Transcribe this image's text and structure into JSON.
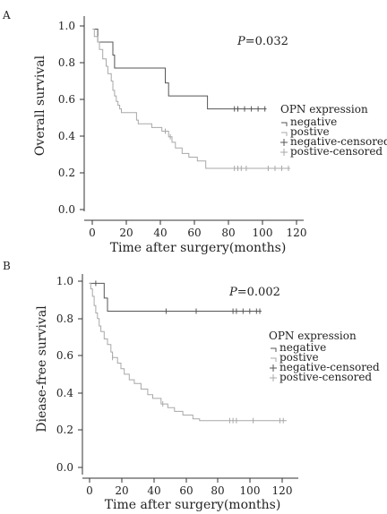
{
  "chart_data": [
    {
      "type": "line",
      "panel_label": "A",
      "p_value": "=0.032",
      "p_letter": "P",
      "xlabel": "Time after surgery(months)",
      "ylabel": "Overall survival",
      "xlim": [
        -5,
        125
      ],
      "ylim": [
        -0.03,
        1.07
      ],
      "xticks": [
        0,
        20,
        40,
        60,
        80,
        100,
        120
      ],
      "yticks": [
        "0.0",
        "0.2",
        "0.4",
        "0.6",
        "0.8",
        "1.0"
      ],
      "legend_title": "OPN expression",
      "legend_entries": [
        "negative",
        "postive",
        "negative-censored",
        "postive-censored"
      ],
      "series": [
        {
          "name": "negative",
          "color": "#555555",
          "steps": [
            [
              0,
              1.0
            ],
            [
              3,
              0.93
            ],
            [
              10,
              0.93
            ],
            [
              12,
              0.86
            ],
            [
              13,
              0.79
            ],
            [
              40,
              0.79
            ],
            [
              43,
              0.71
            ],
            [
              45,
              0.64
            ],
            [
              67,
              0.64
            ],
            [
              68,
              0.57
            ],
            [
              103,
              0.57
            ]
          ],
          "censored": [
            [
              84,
              0.57
            ],
            [
              86,
              0.57
            ],
            [
              90,
              0.57
            ],
            [
              94,
              0.57
            ],
            [
              98,
              0.57
            ],
            [
              102,
              0.57
            ]
          ]
        },
        {
          "name": "postive",
          "color": "#a8a8a8",
          "steps": [
            [
              0,
              1.0
            ],
            [
              1,
              0.96
            ],
            [
              3,
              0.93
            ],
            [
              4,
              0.89
            ],
            [
              6,
              0.84
            ],
            [
              8,
              0.8
            ],
            [
              9,
              0.76
            ],
            [
              11,
              0.72
            ],
            [
              12,
              0.67
            ],
            [
              13,
              0.64
            ],
            [
              14,
              0.61
            ],
            [
              15,
              0.59
            ],
            [
              16,
              0.57
            ],
            [
              17,
              0.55
            ],
            [
              26,
              0.51
            ],
            [
              27,
              0.49
            ],
            [
              35,
              0.47
            ],
            [
              41,
              0.45
            ],
            [
              45,
              0.42
            ],
            [
              47,
              0.39
            ],
            [
              49,
              0.36
            ],
            [
              53,
              0.33
            ],
            [
              57,
              0.31
            ],
            [
              62,
              0.29
            ],
            [
              67,
              0.25
            ],
            [
              117,
              0.25
            ]
          ],
          "censored": [
            [
              43,
              0.45
            ],
            [
              46,
              0.42
            ],
            [
              84,
              0.25
            ],
            [
              86,
              0.25
            ],
            [
              88,
              0.25
            ],
            [
              91,
              0.25
            ],
            [
              104,
              0.25
            ],
            [
              108,
              0.25
            ],
            [
              112,
              0.25
            ],
            [
              116,
              0.25
            ]
          ]
        }
      ]
    },
    {
      "type": "line",
      "panel_label": "B",
      "p_value": "=0.002",
      "p_letter": "P",
      "xlabel": "Time after surgery(months)",
      "ylabel": "Diease-free survival",
      "xlim": [
        -4,
        125
      ],
      "ylim": [
        -0.05,
        1.05
      ],
      "xticks": [
        0,
        20,
        40,
        60,
        80,
        100,
        120
      ],
      "yticks": [
        "0.0",
        "0.2",
        "0.4",
        "0.6",
        "0.8",
        "1.0"
      ],
      "legend_title": "OPN expression",
      "legend_entries": [
        "negative",
        "postive",
        "negative-censored",
        "postive-censored"
      ],
      "series": [
        {
          "name": "negative",
          "color": "#555555",
          "steps": [
            [
              0,
              1.0
            ],
            [
              8,
              1.0
            ],
            [
              9,
              0.92
            ],
            [
              11,
              0.85
            ],
            [
              103,
              0.85
            ]
          ],
          "censored": [
            [
              4,
              1.0
            ],
            [
              46,
              0.85
            ],
            [
              64,
              0.85
            ],
            [
              86,
              0.85
            ],
            [
              88,
              0.85
            ],
            [
              92,
              0.85
            ],
            [
              96,
              0.85
            ],
            [
              100,
              0.85
            ],
            [
              102,
              0.85
            ]
          ]
        },
        {
          "name": "postive",
          "color": "#a8a8a8",
          "steps": [
            [
              0,
              1.0
            ],
            [
              1,
              0.97
            ],
            [
              2,
              0.93
            ],
            [
              3,
              0.88
            ],
            [
              4,
              0.84
            ],
            [
              5,
              0.81
            ],
            [
              6,
              0.77
            ],
            [
              7,
              0.74
            ],
            [
              9,
              0.7
            ],
            [
              11,
              0.67
            ],
            [
              13,
              0.63
            ],
            [
              14,
              0.6
            ],
            [
              17,
              0.57
            ],
            [
              19,
              0.54
            ],
            [
              21,
              0.51
            ],
            [
              24,
              0.48
            ],
            [
              27,
              0.46
            ],
            [
              31,
              0.43
            ],
            [
              35,
              0.4
            ],
            [
              38,
              0.38
            ],
            [
              43,
              0.35
            ],
            [
              47,
              0.33
            ],
            [
              51,
              0.31
            ],
            [
              56,
              0.29
            ],
            [
              62,
              0.27
            ],
            [
              66,
              0.26
            ],
            [
              118,
              0.26
            ]
          ],
          "censored": [
            [
              14,
              0.6
            ],
            [
              44,
              0.35
            ],
            [
              84,
              0.26
            ],
            [
              86,
              0.26
            ],
            [
              88,
              0.26
            ],
            [
              98,
              0.26
            ],
            [
              114,
              0.26
            ],
            [
              116,
              0.26
            ]
          ]
        }
      ]
    }
  ]
}
